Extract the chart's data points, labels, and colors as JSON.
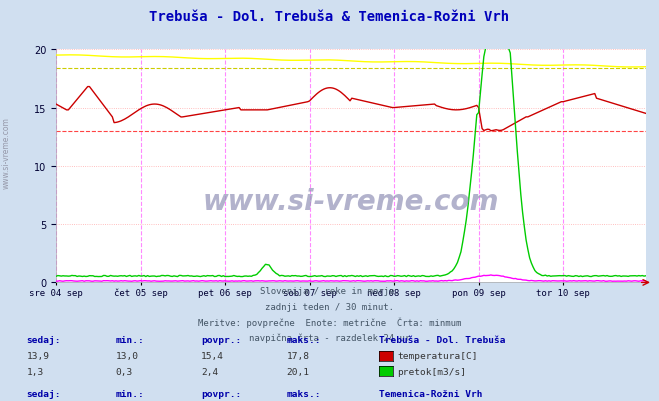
{
  "title": "Trebuša - Dol. Trebuša & Temenica-Rožni Vrh",
  "title_color": "#0000bb",
  "bg_color": "#d0dff0",
  "plot_bg_color": "#ffffff",
  "ylim": [
    0,
    20
  ],
  "yticks": [
    0,
    5,
    10,
    15,
    20
  ],
  "x_labels": [
    "sre 04 sep",
    "čet 05 sep",
    "pet 06 sep",
    "sob 07 sep",
    "ned 08 sep",
    "pon 09 sep",
    "tor 10 sep"
  ],
  "n_points": 336,
  "subtitle_lines": [
    "Slovenija / reke in morje.",
    "zadnji teden / 30 minut.",
    "Meritve: povprečne  Enote: metrične  Črta: minmum",
    "navpična črta - razdelek 24 ur"
  ],
  "stats_color": "#0000aa",
  "watermark": "www.si-vreme.com",
  "red_color": "#cc0000",
  "green_color": "#00cc00",
  "yellow_color": "#ffff00",
  "magenta_color": "#ff00ff",
  "grid_h_color": "#ffaaaa",
  "vline_color": "#ff88ff",
  "red_hline_color": "#ff0000",
  "yellow_hline_color": "#cccc00",
  "red_temp_min": 13.0,
  "yellow_temp_min": 18.4
}
